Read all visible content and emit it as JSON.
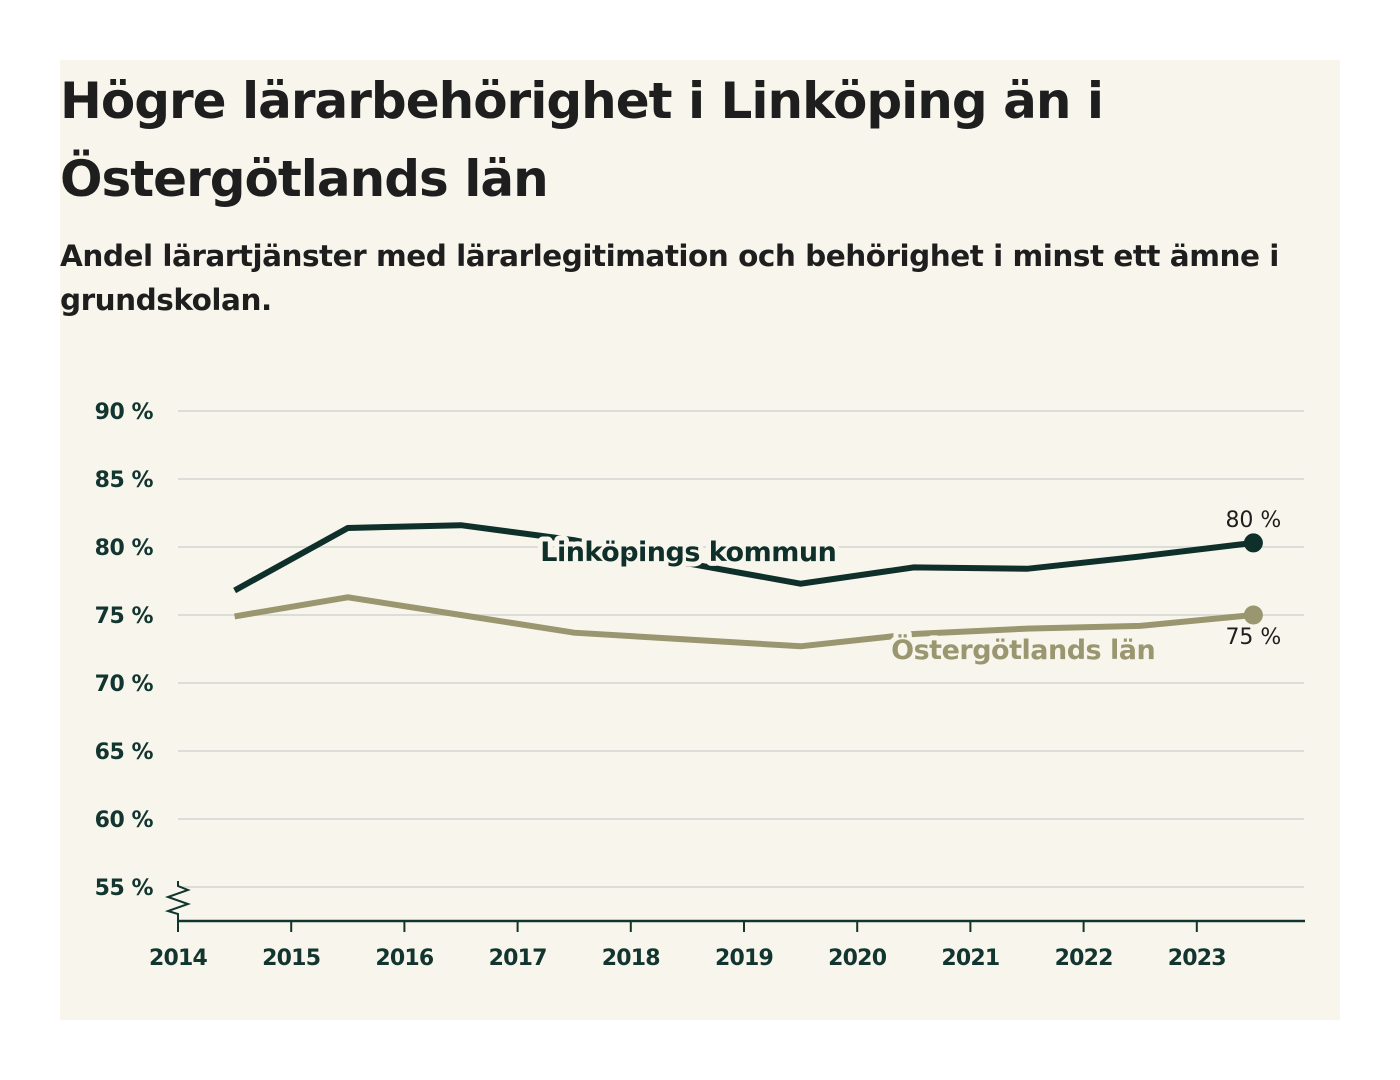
{
  "header": {
    "title": "Högre lärarbehörighet i Linköping än i Östergötlands län",
    "subtitle": "Andel lärartjänster med lärarlegitimation och behörighet i minst ett ämne i grundskolan."
  },
  "colors": {
    "background": "#f8f6ec",
    "linkoping": "#0f2f2a",
    "ostergotland": "#9a9670",
    "grid": "#dcdcd8",
    "axis": "#123530",
    "text": "#1e1e1e"
  },
  "chart_data": {
    "type": "line",
    "title": "Högre lärarbehörighet i Linköping än i Östergötlands län",
    "subtitle": "Andel lärartjänster med lärarlegitimation och behörighet i minst ett ämne i grundskolan.",
    "xlabel": "",
    "ylabel": "",
    "x_ticks": [
      "2014",
      "2015",
      "2016",
      "2017",
      "2018",
      "2019",
      "2020",
      "2021",
      "2022",
      "2023"
    ],
    "y_ticks": [
      "90 %",
      "85 %",
      "80 %",
      "75 %",
      "70 %",
      "65 %",
      "60 %",
      "55 %"
    ],
    "y_tick_values": [
      90,
      85,
      80,
      75,
      70,
      65,
      60,
      55
    ],
    "xlim": [
      2014,
      2024
    ],
    "ylim": [
      52.5,
      90
    ],
    "y_axis_break": true,
    "grid": "horizontal",
    "legend": "inline labels on lines",
    "x": [
      2014.5,
      2015.5,
      2016.5,
      2017.5,
      2018.5,
      2019.5,
      2020.5,
      2021.5,
      2022.5,
      2023.5
    ],
    "series": [
      {
        "name": "Linköpings kommun",
        "color": "#0f2f2a",
        "values": [
          76.8,
          81.4,
          81.6,
          80.5,
          78.8,
          77.3,
          78.5,
          78.4,
          79.3,
          80.3
        ],
        "end_label": "80 %",
        "end_label_position": "above"
      },
      {
        "name": "Östergötlands län",
        "color": "#9a9670",
        "values": [
          74.9,
          76.3,
          75.0,
          73.7,
          73.2,
          72.7,
          73.6,
          74.0,
          74.2,
          75.0
        ],
        "end_label": "75 %",
        "end_label_position": "below"
      }
    ],
    "series_label_anchor": [
      {
        "series": 0,
        "x": 2017.2,
        "y": 80.0
      },
      {
        "series": 1,
        "x": 2020.3,
        "y": 72.8
      }
    ]
  }
}
